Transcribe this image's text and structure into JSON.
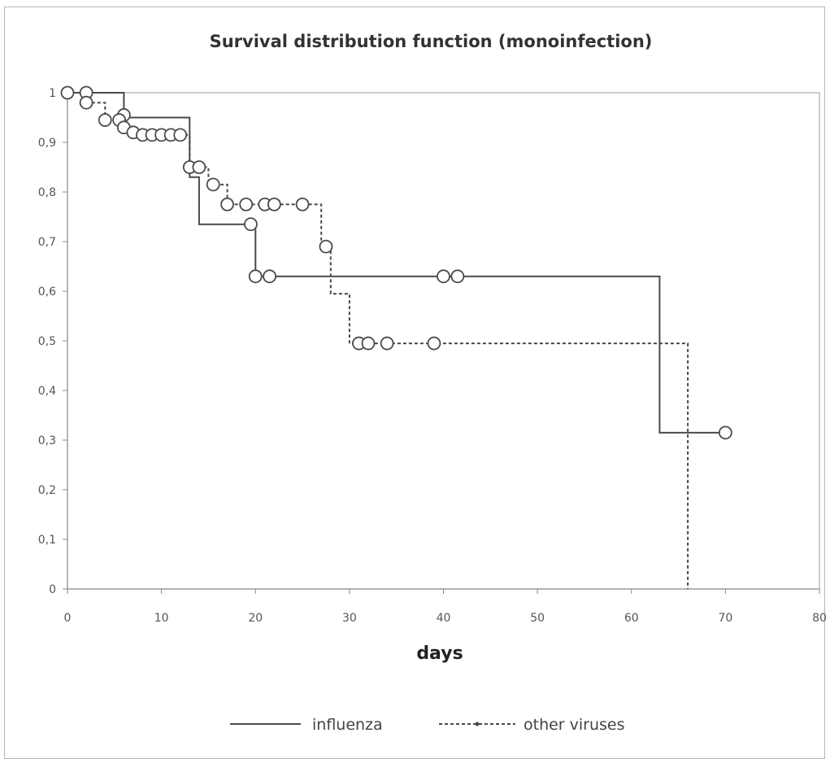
{
  "chart_data": {
    "type": "line",
    "subtype": "step-survival",
    "title": "Survival distribution  function  (monoinfection)",
    "xlabel": "days",
    "ylabel": "",
    "xlim": [
      0,
      80
    ],
    "ylim": [
      0,
      1
    ],
    "x_ticks": [
      "0",
      "10",
      "20",
      "30",
      "40",
      "50",
      "60",
      "70",
      "80"
    ],
    "y_ticks": [
      "0",
      "0,1",
      "0,2",
      "0,3",
      "0,4",
      "0,5",
      "0,6",
      "0,7",
      "0,8",
      "0,9",
      "1"
    ],
    "grid": false,
    "legend_position": "bottom",
    "series": [
      {
        "name": "influenza",
        "line_style": "solid",
        "color": "#4a4a4a",
        "step_points": [
          {
            "x": 0,
            "y": 1
          },
          {
            "x": 6,
            "y": 1
          },
          {
            "x": 6,
            "y": 0.95
          },
          {
            "x": 13,
            "y": 0.95
          },
          {
            "x": 13,
            "y": 0.83
          },
          {
            "x": 14,
            "y": 0.83
          },
          {
            "x": 14,
            "y": 0.735
          },
          {
            "x": 20,
            "y": 0.735
          },
          {
            "x": 20,
            "y": 0.63
          },
          {
            "x": 63,
            "y": 0.63
          },
          {
            "x": 63,
            "y": 0.315
          },
          {
            "x": 70,
            "y": 0.315
          }
        ],
        "censored": [
          {
            "x": 6,
            "y": 0.955
          },
          {
            "x": 19.5,
            "y": 0.735
          },
          {
            "x": 20,
            "y": 0.63
          },
          {
            "x": 21.5,
            "y": 0.63
          },
          {
            "x": 40,
            "y": 0.63
          },
          {
            "x": 41.5,
            "y": 0.63
          },
          {
            "x": 70,
            "y": 0.315
          }
        ]
      },
      {
        "name": "other viruses",
        "line_style": "dashed",
        "color": "#4a4a4a",
        "step_points": [
          {
            "x": 0,
            "y": 1
          },
          {
            "x": 2,
            "y": 1
          },
          {
            "x": 2,
            "y": 0.98
          },
          {
            "x": 4,
            "y": 0.98
          },
          {
            "x": 4,
            "y": 0.945
          },
          {
            "x": 6,
            "y": 0.945
          },
          {
            "x": 6,
            "y": 0.93
          },
          {
            "x": 7,
            "y": 0.93
          },
          {
            "x": 7,
            "y": 0.915
          },
          {
            "x": 13,
            "y": 0.915
          },
          {
            "x": 13,
            "y": 0.85
          },
          {
            "x": 15,
            "y": 0.85
          },
          {
            "x": 15,
            "y": 0.815
          },
          {
            "x": 17,
            "y": 0.815
          },
          {
            "x": 17,
            "y": 0.775
          },
          {
            "x": 27,
            "y": 0.775
          },
          {
            "x": 27,
            "y": 0.69
          },
          {
            "x": 28,
            "y": 0.69
          },
          {
            "x": 28,
            "y": 0.595
          },
          {
            "x": 30,
            "y": 0.595
          },
          {
            "x": 30,
            "y": 0.495
          },
          {
            "x": 66,
            "y": 0.495
          },
          {
            "x": 66,
            "y": 0
          }
        ],
        "censored": [
          {
            "x": 0,
            "y": 1
          },
          {
            "x": 2,
            "y": 1
          },
          {
            "x": 2,
            "y": 0.98
          },
          {
            "x": 4,
            "y": 0.945
          },
          {
            "x": 5.5,
            "y": 0.945
          },
          {
            "x": 6,
            "y": 0.93
          },
          {
            "x": 7,
            "y": 0.92
          },
          {
            "x": 8,
            "y": 0.915
          },
          {
            "x": 9,
            "y": 0.915
          },
          {
            "x": 10,
            "y": 0.915
          },
          {
            "x": 11,
            "y": 0.915
          },
          {
            "x": 12,
            "y": 0.915
          },
          {
            "x": 13,
            "y": 0.85
          },
          {
            "x": 14,
            "y": 0.85
          },
          {
            "x": 15.5,
            "y": 0.815
          },
          {
            "x": 17,
            "y": 0.775
          },
          {
            "x": 19,
            "y": 0.775
          },
          {
            "x": 21,
            "y": 0.775
          },
          {
            "x": 22,
            "y": 0.775
          },
          {
            "x": 25,
            "y": 0.775
          },
          {
            "x": 27.5,
            "y": 0.69
          },
          {
            "x": 31,
            "y": 0.495
          },
          {
            "x": 32,
            "y": 0.495
          },
          {
            "x": 34,
            "y": 0.495
          },
          {
            "x": 39,
            "y": 0.495
          }
        ]
      }
    ]
  }
}
